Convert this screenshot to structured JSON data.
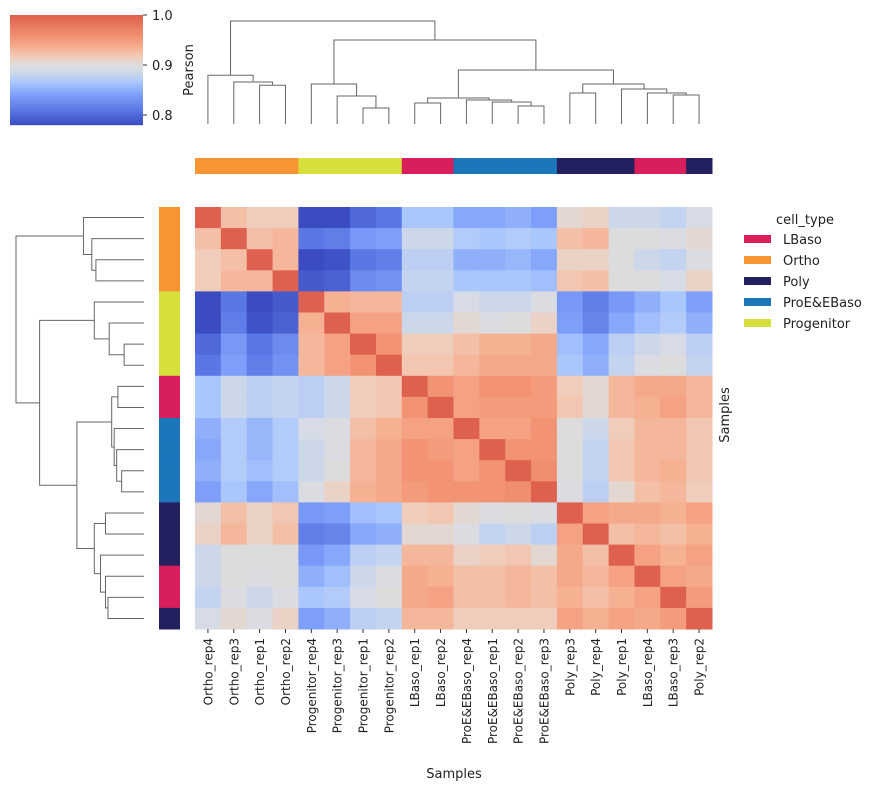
{
  "chart_data": {
    "type": "heatmap",
    "title": "",
    "xlabel": "Samples",
    "ylabel": "Samples",
    "labels": [
      "Ortho_rep4",
      "Ortho_rep3",
      "Ortho_rep1",
      "Ortho_rep2",
      "Progenitor_rep4",
      "Progenitor_rep3",
      "Progenitor_rep1",
      "Progenitor_rep2",
      "LBaso_rep1",
      "LBaso_rep2",
      "ProE&EBaso_rep4",
      "ProE&EBaso_rep1",
      "ProE&EBaso_rep2",
      "ProE&EBaso_rep3",
      "Poly_rep3",
      "Poly_rep4",
      "Poly_rep1",
      "LBaso_rep4",
      "LBaso_rep3",
      "Poly_rep2"
    ],
    "cell_types": [
      "Ortho",
      "Ortho",
      "Ortho",
      "Ortho",
      "Progenitor",
      "Progenitor",
      "Progenitor",
      "Progenitor",
      "LBaso",
      "LBaso",
      "ProE&EBaso",
      "ProE&EBaso",
      "ProE&EBaso",
      "ProE&EBaso",
      "Poly",
      "Poly",
      "Poly",
      "LBaso",
      "LBaso",
      "Poly"
    ],
    "values": [
      [
        1,
        0.925,
        0.915,
        0.915,
        0.78,
        0.78,
        0.8,
        0.81,
        0.865,
        0.865,
        0.845,
        0.845,
        0.85,
        0.84,
        0.905,
        0.91,
        0.885,
        0.885,
        0.88,
        0.89
      ],
      [
        0.925,
        1,
        0.925,
        0.93,
        0.81,
        0.815,
        0.835,
        0.84,
        0.885,
        0.885,
        0.87,
        0.865,
        0.87,
        0.865,
        0.925,
        0.93,
        0.9,
        0.9,
        0.895,
        0.905
      ],
      [
        0.915,
        0.925,
        1,
        0.93,
        0.78,
        0.785,
        0.81,
        0.815,
        0.875,
        0.875,
        0.85,
        0.85,
        0.855,
        0.845,
        0.91,
        0.91,
        0.9,
        0.885,
        0.88,
        0.895
      ],
      [
        0.915,
        0.93,
        0.93,
        1,
        0.79,
        0.795,
        0.825,
        0.83,
        0.88,
        0.88,
        0.865,
        0.865,
        0.865,
        0.86,
        0.92,
        0.925,
        0.9,
        0.9,
        0.89,
        0.91
      ],
      [
        0.78,
        0.81,
        0.78,
        0.79,
        1,
        0.935,
        0.93,
        0.93,
        0.875,
        0.875,
        0.89,
        0.885,
        0.885,
        0.895,
        0.835,
        0.815,
        0.835,
        0.85,
        0.865,
        0.84
      ],
      [
        0.78,
        0.815,
        0.785,
        0.795,
        0.935,
        1,
        0.945,
        0.945,
        0.885,
        0.885,
        0.905,
        0.895,
        0.9,
        0.91,
        0.84,
        0.82,
        0.845,
        0.86,
        0.87,
        0.85
      ],
      [
        0.8,
        0.835,
        0.81,
        0.825,
        0.93,
        0.945,
        1,
        0.955,
        0.915,
        0.915,
        0.925,
        0.935,
        0.935,
        0.94,
        0.86,
        0.845,
        0.875,
        0.885,
        0.89,
        0.875
      ],
      [
        0.81,
        0.84,
        0.815,
        0.83,
        0.93,
        0.945,
        0.955,
        1,
        0.92,
        0.92,
        0.93,
        0.94,
        0.94,
        0.94,
        0.865,
        0.85,
        0.88,
        0.895,
        0.9,
        0.88
      ],
      [
        0.865,
        0.885,
        0.875,
        0.88,
        0.875,
        0.885,
        0.915,
        0.92,
        1,
        0.955,
        0.945,
        0.955,
        0.955,
        0.95,
        0.915,
        0.905,
        0.93,
        0.94,
        0.94,
        0.93
      ],
      [
        0.865,
        0.885,
        0.875,
        0.88,
        0.875,
        0.885,
        0.915,
        0.92,
        0.955,
        1,
        0.945,
        0.95,
        0.95,
        0.95,
        0.92,
        0.905,
        0.93,
        0.935,
        0.945,
        0.93
      ],
      [
        0.85,
        0.87,
        0.855,
        0.87,
        0.89,
        0.895,
        0.925,
        0.935,
        0.945,
        0.945,
        1,
        0.945,
        0.945,
        0.955,
        0.9,
        0.885,
        0.915,
        0.93,
        0.93,
        0.92
      ],
      [
        0.845,
        0.87,
        0.855,
        0.87,
        0.885,
        0.895,
        0.93,
        0.94,
        0.955,
        0.95,
        0.945,
        1,
        0.955,
        0.955,
        0.9,
        0.88,
        0.92,
        0.93,
        0.93,
        0.92
      ],
      [
        0.85,
        0.87,
        0.86,
        0.87,
        0.885,
        0.9,
        0.93,
        0.94,
        0.955,
        0.955,
        0.945,
        0.955,
        1,
        0.96,
        0.9,
        0.88,
        0.92,
        0.93,
        0.935,
        0.92
      ],
      [
        0.84,
        0.865,
        0.845,
        0.86,
        0.895,
        0.91,
        0.935,
        0.94,
        0.95,
        0.955,
        0.955,
        0.955,
        0.96,
        1,
        0.895,
        0.875,
        0.905,
        0.925,
        0.93,
        0.915
      ],
      [
        0.905,
        0.925,
        0.91,
        0.92,
        0.835,
        0.84,
        0.86,
        0.865,
        0.915,
        0.92,
        0.905,
        0.895,
        0.9,
        0.895,
        1,
        0.945,
        0.94,
        0.94,
        0.935,
        0.945
      ],
      [
        0.91,
        0.93,
        0.91,
        0.925,
        0.815,
        0.82,
        0.845,
        0.85,
        0.905,
        0.905,
        0.895,
        0.88,
        0.885,
        0.875,
        0.945,
        1,
        0.925,
        0.93,
        0.925,
        0.935
      ],
      [
        0.885,
        0.9,
        0.9,
        0.9,
        0.835,
        0.845,
        0.875,
        0.88,
        0.93,
        0.93,
        0.91,
        0.915,
        0.92,
        0.905,
        0.94,
        0.925,
        1,
        0.945,
        0.935,
        0.945
      ],
      [
        0.885,
        0.9,
        0.895,
        0.9,
        0.85,
        0.86,
        0.885,
        0.895,
        0.94,
        0.935,
        0.925,
        0.925,
        0.93,
        0.925,
        0.94,
        0.93,
        0.945,
        1,
        0.945,
        0.94
      ],
      [
        0.88,
        0.895,
        0.885,
        0.895,
        0.865,
        0.87,
        0.89,
        0.9,
        0.94,
        0.945,
        0.925,
        0.925,
        0.93,
        0.925,
        0.935,
        0.925,
        0.935,
        0.945,
        1,
        0.95
      ],
      [
        0.89,
        0.905,
        0.895,
        0.91,
        0.84,
        0.85,
        0.875,
        0.88,
        0.93,
        0.93,
        0.915,
        0.915,
        0.915,
        0.915,
        0.945,
        0.935,
        0.945,
        0.94,
        0.95,
        1
      ]
    ],
    "colorbar": {
      "label": "Pearson",
      "range": [
        0.78,
        1.0
      ],
      "ticks": [
        "0.8",
        "0.9",
        "1.0"
      ],
      "tick_values": [
        0.8,
        0.9,
        1.0
      ],
      "colormap": "coolwarm"
    },
    "legend": {
      "title": "cell_type",
      "placement": "right",
      "entries": [
        {
          "label": "LBaso",
          "color": "#d81e5b"
        },
        {
          "label": "Ortho",
          "color": "#f89431"
        },
        {
          "label": "Poly",
          "color": "#23205f"
        },
        {
          "label": "ProE&EBaso",
          "color": "#1b76ba"
        },
        {
          "label": "Progenitor",
          "color": "#d7df3c"
        }
      ]
    },
    "dendrogram": true
  }
}
